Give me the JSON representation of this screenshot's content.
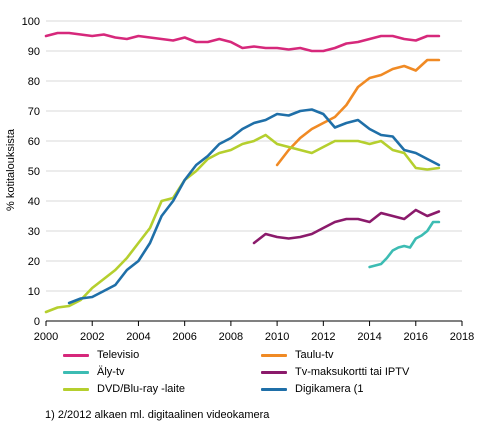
{
  "chart_data": {
    "type": "line",
    "ylabel": "% kotitalouksista",
    "xlim": [
      2000,
      2018
    ],
    "ylim": [
      0,
      100
    ],
    "xticks": [
      2000,
      2002,
      2004,
      2006,
      2008,
      2010,
      2012,
      2014,
      2016,
      2018
    ],
    "yticks": [
      0,
      10,
      20,
      30,
      40,
      50,
      60,
      70,
      80,
      90,
      100
    ],
    "grid": "horizontal",
    "legend_position": "bottom",
    "footnote": "1) 2/2012 alkaen ml. digitaalinen videokamera",
    "series": [
      {
        "name": "Televisio",
        "color": "#d6287b",
        "x": [
          2000,
          2000.5,
          2001,
          2001.5,
          2002,
          2002.5,
          2003,
          2003.5,
          2004,
          2004.5,
          2005,
          2005.5,
          2006,
          2006.5,
          2007,
          2007.5,
          2008,
          2008.5,
          2009,
          2009.5,
          2010,
          2010.5,
          2011,
          2011.5,
          2012,
          2012.5,
          2013,
          2013.5,
          2014,
          2014.5,
          2015,
          2015.5,
          2016,
          2016.5,
          2017
        ],
        "y": [
          95,
          96,
          96,
          95.5,
          95,
          95.5,
          94.5,
          94,
          95,
          94.5,
          94,
          93.5,
          94.5,
          93,
          93,
          94,
          93,
          91,
          91.5,
          91,
          91,
          90.5,
          91,
          90,
          90,
          91,
          92.5,
          93,
          94,
          95,
          95,
          94,
          93.5,
          95,
          95
        ]
      },
      {
        "name": "Taulu-tv",
        "color": "#f08a24",
        "x": [
          2010,
          2010.5,
          2011,
          2011.5,
          2012,
          2012.5,
          2013,
          2013.5,
          2014,
          2014.5,
          2015,
          2015.5,
          2016,
          2016.5,
          2017
        ],
        "y": [
          52,
          57,
          61,
          64,
          66,
          68,
          72,
          78,
          81,
          82,
          84,
          85,
          83.5,
          87,
          87
        ]
      },
      {
        "name": "Äly-tv",
        "color": "#3cbcb3",
        "x": [
          2014,
          2014.25,
          2014.5,
          2014.75,
          2015,
          2015.25,
          2015.5,
          2015.75,
          2016,
          2016.25,
          2016.5,
          2016.75,
          2017
        ],
        "y": [
          18,
          18.5,
          19,
          21,
          23.5,
          24.5,
          25,
          24.5,
          27.5,
          28.5,
          30,
          33,
          33
        ]
      },
      {
        "name": "Tv-maksukortti tai IPTV",
        "color": "#8b1a6b",
        "x": [
          2009,
          2009.5,
          2010,
          2010.5,
          2011,
          2011.5,
          2012,
          2012.5,
          2013,
          2013.5,
          2014,
          2014.5,
          2015,
          2015.5,
          2016,
          2016.5,
          2017
        ],
        "y": [
          26,
          29,
          28,
          27.5,
          28,
          29,
          31,
          33,
          34,
          34,
          33,
          36,
          35,
          34,
          37,
          35,
          36.5
        ]
      },
      {
        "name": "DVD/Blu-ray -laite",
        "color": "#b5cf2e",
        "x": [
          2000,
          2000.5,
          2001,
          2001.5,
          2002,
          2002.5,
          2003,
          2003.5,
          2004,
          2004.5,
          2005,
          2005.5,
          2006,
          2006.5,
          2007,
          2007.5,
          2008,
          2008.5,
          2009,
          2009.5,
          2010,
          2010.5,
          2011,
          2011.5,
          2012,
          2012.5,
          2013,
          2013.5,
          2014,
          2014.5,
          2015,
          2015.5,
          2016,
          2016.5,
          2017
        ],
        "y": [
          3,
          4.5,
          5,
          7,
          11,
          14,
          17,
          21,
          26,
          31,
          40,
          41,
          47,
          50,
          54,
          56,
          57,
          59,
          60,
          62,
          59,
          58,
          57,
          56,
          58,
          60,
          60,
          60,
          59,
          60,
          57,
          56,
          51,
          50.5,
          51
        ]
      },
      {
        "name": "Digikamera (1",
        "color": "#1f6fa8",
        "x": [
          2001,
          2001.5,
          2002,
          2002.5,
          2003,
          2003.5,
          2004,
          2004.5,
          2005,
          2005.5,
          2006,
          2006.5,
          2007,
          2007.5,
          2008,
          2008.5,
          2009,
          2009.5,
          2010,
          2010.5,
          2011,
          2011.5,
          2012,
          2012.5,
          2013,
          2013.5,
          2014,
          2014.5,
          2015,
          2015.5,
          2016,
          2016.5,
          2017
        ],
        "y": [
          6,
          7.5,
          8,
          10,
          12,
          17,
          20,
          26,
          35,
          40,
          47,
          52,
          55,
          59,
          61,
          64,
          66,
          67,
          69,
          68.5,
          70,
          70.5,
          69,
          64.5,
          66,
          67,
          64,
          62,
          61.5,
          57,
          56,
          54,
          52
        ]
      }
    ]
  }
}
